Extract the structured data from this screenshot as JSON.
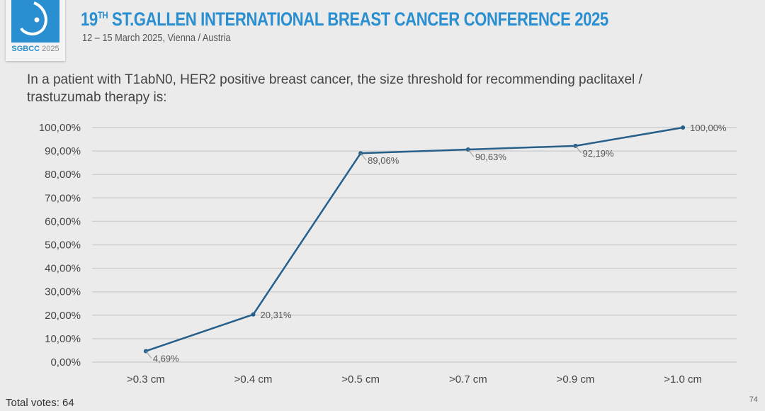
{
  "header": {
    "title_num": "19",
    "title_sup": "TH",
    "title_rest": " ST.GALLEN INTERNATIONAL BREAST CANCER CONFERENCE 2025",
    "subtitle": "12 – 15 March 2025, Vienna / Austria",
    "logo_text_a": "SGBCC",
    "logo_text_b": " 2025"
  },
  "question": "In a patient with T1abN0, HER2 positive breast cancer, the size threshold for recommending paclitaxel / trastuzumab therapy is:",
  "footer": {
    "total_votes": "Total votes: 64",
    "page_number": "74"
  },
  "colors": {
    "line": "#255f8a",
    "brand": "#2a8fd0",
    "grid": "#d0d0d0"
  },
  "chart_data": {
    "type": "line",
    "categories": [
      ">0.3 cm",
      ">0.4 cm",
      ">0.5 cm",
      ">0.7 cm",
      ">0.9 cm",
      ">1.0 cm"
    ],
    "values": [
      4.69,
      20.31,
      89.06,
      90.63,
      92.19,
      100.0
    ],
    "data_labels": [
      "4,69%",
      "20,31%",
      "89,06%",
      "90,63%",
      "92,19%",
      "100,00%"
    ],
    "ylim": [
      0,
      100
    ],
    "yticks": [
      "0,00%",
      "10,00%",
      "20,00%",
      "30,00%",
      "40,00%",
      "50,00%",
      "60,00%",
      "70,00%",
      "80,00%",
      "90,00%",
      "100,00%"
    ],
    "grid": true,
    "legend": "none"
  }
}
